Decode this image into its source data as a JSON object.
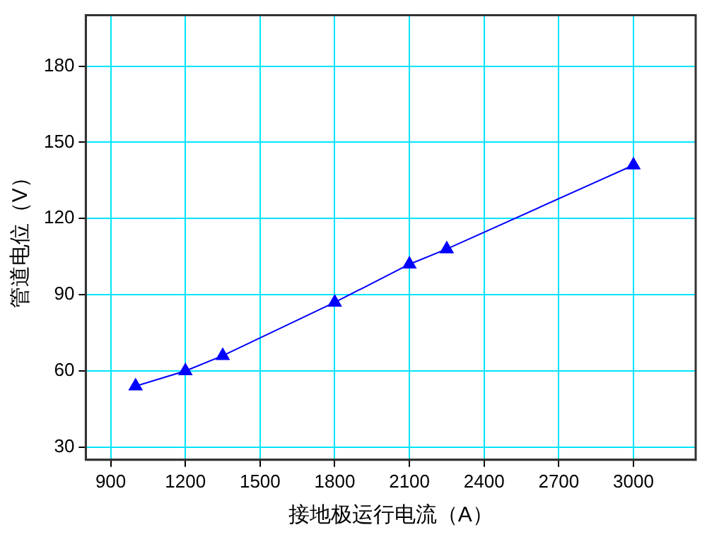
{
  "chart_data": {
    "type": "line",
    "xlabel": "接地极运行电流（A）",
    "ylabel": "管道电位（V）",
    "x": [
      1000,
      1200,
      1350,
      1800,
      2100,
      2250,
      3000
    ],
    "series": [
      {
        "color": "#0000ff",
        "values": [
          54,
          60,
          66,
          87,
          102,
          108,
          141
        ]
      }
    ],
    "xlim": [
      800,
      3250
    ],
    "xticks": [
      900,
      1200,
      1500,
      1800,
      2100,
      2400,
      2700,
      3000
    ],
    "ylim": [
      25,
      200
    ],
    "yticks": [
      30,
      60,
      90,
      120,
      150,
      180
    ],
    "grid": true,
    "marker": "triangle",
    "legend": false
  }
}
